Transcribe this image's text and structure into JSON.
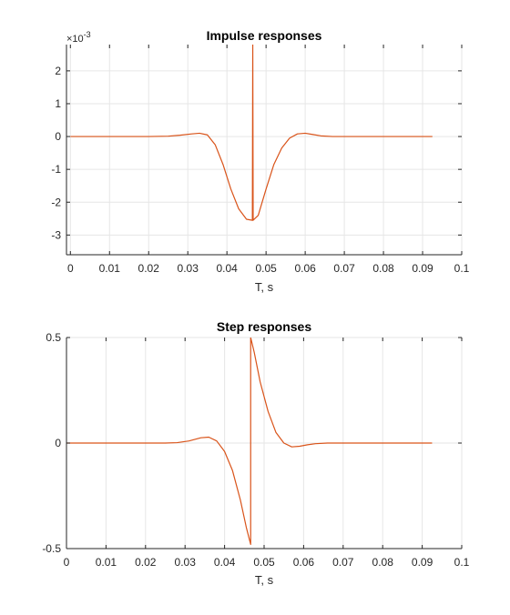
{
  "chart_data": [
    {
      "type": "line",
      "title": "Impulse responses",
      "xlabel": "T, s",
      "ylabel": "",
      "xlim": [
        -0.001,
        0.1
      ],
      "ylim": [
        -3.6,
        2.8
      ],
      "y_multiplier_label": "×10",
      "y_multiplier_exponent": "-3",
      "x_ticks": [
        "0",
        "0.01",
        "0.02",
        "0.03",
        "0.04",
        "0.05",
        "0.06",
        "0.07",
        "0.08",
        "0.09",
        "0.1"
      ],
      "x_tick_values": [
        0,
        0.01,
        0.02,
        0.03,
        0.04,
        0.05,
        0.06,
        0.07,
        0.08,
        0.09,
        0.1
      ],
      "y_ticks": [
        "-3",
        "-2",
        "-1",
        "0",
        "1",
        "2"
      ],
      "y_tick_values": [
        -3,
        -2,
        -1,
        0,
        1,
        2
      ],
      "grid": true,
      "series": [
        {
          "color": "#d95319",
          "x": [
            0,
            0.02,
            0.025,
            0.028,
            0.031,
            0.033,
            0.035,
            0.037,
            0.039,
            0.041,
            0.043,
            0.045,
            0.0465,
            0.0466,
            0.0466,
            0.0467,
            0.048,
            0.05,
            0.052,
            0.054,
            0.056,
            0.058,
            0.06,
            0.062,
            0.064,
            0.067,
            0.07,
            0.08,
            0.0925
          ],
          "y": [
            0,
            0,
            0.01,
            0.04,
            0.08,
            0.1,
            0.05,
            -0.25,
            -0.85,
            -1.6,
            -2.2,
            -2.52,
            -2.55,
            2.8,
            2.8,
            -2.55,
            -2.4,
            -1.6,
            -0.85,
            -0.35,
            -0.05,
            0.08,
            0.1,
            0.06,
            0.02,
            0,
            0,
            0,
            0
          ]
        }
      ]
    },
    {
      "type": "line",
      "title": "Step responses",
      "xlabel": "T, s",
      "ylabel": "",
      "xlim": [
        0,
        0.1
      ],
      "ylim": [
        -0.5,
        0.5
      ],
      "x_ticks": [
        "0",
        "0.01",
        "0.02",
        "0.03",
        "0.04",
        "0.05",
        "0.06",
        "0.07",
        "0.08",
        "0.09",
        "0.1"
      ],
      "x_tick_values": [
        0,
        0.01,
        0.02,
        0.03,
        0.04,
        0.05,
        0.06,
        0.07,
        0.08,
        0.09,
        0.1
      ],
      "y_ticks": [
        "-0.5",
        "0",
        "0.5"
      ],
      "y_tick_values": [
        -0.5,
        0,
        0.5
      ],
      "grid": true,
      "series": [
        {
          "color": "#d95319",
          "x": [
            0,
            0.025,
            0.028,
            0.031,
            0.034,
            0.036,
            0.038,
            0.04,
            0.042,
            0.044,
            0.0455,
            0.0466,
            0.0466,
            0.0475,
            0.049,
            0.051,
            0.053,
            0.055,
            0.057,
            0.059,
            0.061,
            0.063,
            0.066,
            0.07,
            0.08,
            0.0925
          ],
          "y": [
            0,
            0,
            0.002,
            0.01,
            0.025,
            0.028,
            0.01,
            -0.04,
            -0.13,
            -0.27,
            -0.4,
            -0.48,
            0.5,
            0.43,
            0.29,
            0.15,
            0.05,
            0.0,
            -0.018,
            -0.015,
            -0.008,
            -0.003,
            0,
            0,
            0,
            0
          ]
        }
      ]
    }
  ]
}
